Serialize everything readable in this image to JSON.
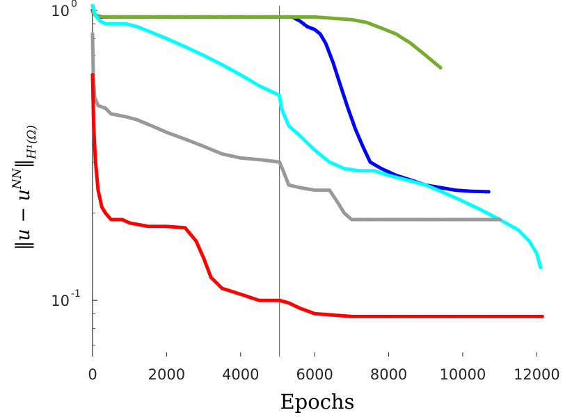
{
  "chart_data": {
    "type": "scatter",
    "xlabel": "Epochs",
    "ylabel": "‖u − u^NN‖_{H¹(Ω)}",
    "xlim": [
      0,
      12200
    ],
    "ylim": [
      0.064,
      1.04
    ],
    "yscale": "log",
    "grid": false,
    "xticks": [
      0,
      2000,
      4000,
      6000,
      8000,
      10000,
      12000
    ],
    "yticks": [
      {
        "value": 1.0,
        "base": "10",
        "exp": "0"
      },
      {
        "value": 0.1,
        "base": "10",
        "exp": "-1"
      }
    ],
    "vline": {
      "x": 5050
    },
    "series": [
      {
        "color": "#0000ff",
        "points": [
          [
            0,
            1.0
          ],
          [
            60,
            0.97
          ],
          [
            150,
            0.95
          ],
          [
            400,
            0.95
          ],
          [
            1000,
            0.95
          ],
          [
            2000,
            0.95
          ],
          [
            3000,
            0.95
          ],
          [
            4000,
            0.95
          ],
          [
            5000,
            0.95
          ],
          [
            5400,
            0.95
          ],
          [
            5600,
            0.92
          ],
          [
            5800,
            0.88
          ],
          [
            6000,
            0.86
          ],
          [
            6150,
            0.83
          ],
          [
            6300,
            0.77
          ],
          [
            6500,
            0.66
          ],
          [
            6700,
            0.55
          ],
          [
            6900,
            0.46
          ],
          [
            7100,
            0.39
          ],
          [
            7300,
            0.34
          ],
          [
            7500,
            0.3
          ],
          [
            7800,
            0.285
          ],
          [
            8200,
            0.27
          ],
          [
            8600,
            0.26
          ],
          [
            9000,
            0.25
          ],
          [
            9400,
            0.245
          ],
          [
            9800,
            0.24
          ],
          [
            10200,
            0.238
          ],
          [
            10700,
            0.237
          ]
        ]
      },
      {
        "color": "#77ac30",
        "points": [
          [
            0,
            0.99
          ],
          [
            100,
            0.96
          ],
          [
            300,
            0.95
          ],
          [
            1000,
            0.95
          ],
          [
            2000,
            0.95
          ],
          [
            3000,
            0.95
          ],
          [
            4000,
            0.95
          ],
          [
            5000,
            0.95
          ],
          [
            6000,
            0.95
          ],
          [
            6500,
            0.94
          ],
          [
            7000,
            0.93
          ],
          [
            7400,
            0.91
          ],
          [
            7800,
            0.87
          ],
          [
            8200,
            0.83
          ],
          [
            8600,
            0.77
          ],
          [
            9000,
            0.7
          ],
          [
            9400,
            0.635
          ]
        ]
      },
      {
        "color": "#00ffff",
        "points": [
          [
            0,
            1.04
          ],
          [
            80,
            0.96
          ],
          [
            200,
            0.92
          ],
          [
            350,
            0.9
          ],
          [
            900,
            0.9
          ],
          [
            1200,
            0.88
          ],
          [
            1600,
            0.84
          ],
          [
            2000,
            0.8
          ],
          [
            2500,
            0.75
          ],
          [
            3000,
            0.7
          ],
          [
            3500,
            0.65
          ],
          [
            4000,
            0.6
          ],
          [
            4500,
            0.55
          ],
          [
            5050,
            0.51
          ],
          [
            5100,
            0.46
          ],
          [
            5300,
            0.4
          ],
          [
            5600,
            0.37
          ],
          [
            6000,
            0.33
          ],
          [
            6400,
            0.3
          ],
          [
            6800,
            0.285
          ],
          [
            7200,
            0.28
          ],
          [
            7600,
            0.28
          ],
          [
            8000,
            0.27
          ],
          [
            8500,
            0.26
          ],
          [
            9000,
            0.25
          ],
          [
            9500,
            0.235
          ],
          [
            10000,
            0.22
          ],
          [
            10500,
            0.205
          ],
          [
            11000,
            0.19
          ],
          [
            11500,
            0.175
          ],
          [
            11800,
            0.16
          ],
          [
            12000,
            0.145
          ],
          [
            12100,
            0.13
          ]
        ]
      },
      {
        "color": "#999999",
        "points": [
          [
            0,
            0.83
          ],
          [
            20,
            0.6
          ],
          [
            60,
            0.5
          ],
          [
            150,
            0.47
          ],
          [
            350,
            0.46
          ],
          [
            500,
            0.44
          ],
          [
            900,
            0.43
          ],
          [
            1200,
            0.42
          ],
          [
            1600,
            0.4
          ],
          [
            2000,
            0.38
          ],
          [
            2500,
            0.36
          ],
          [
            3000,
            0.34
          ],
          [
            3500,
            0.32
          ],
          [
            4000,
            0.31
          ],
          [
            4600,
            0.305
          ],
          [
            5050,
            0.3
          ],
          [
            5150,
            0.28
          ],
          [
            5300,
            0.25
          ],
          [
            5600,
            0.245
          ],
          [
            6000,
            0.24
          ],
          [
            6400,
            0.24
          ],
          [
            6600,
            0.22
          ],
          [
            6800,
            0.2
          ],
          [
            7000,
            0.19
          ],
          [
            8000,
            0.19
          ],
          [
            9000,
            0.19
          ],
          [
            10000,
            0.19
          ],
          [
            11000,
            0.19
          ]
        ]
      },
      {
        "color": "#ff0000",
        "points": [
          [
            0,
            0.6
          ],
          [
            30,
            0.4
          ],
          [
            80,
            0.3
          ],
          [
            150,
            0.24
          ],
          [
            250,
            0.21
          ],
          [
            350,
            0.2
          ],
          [
            500,
            0.19
          ],
          [
            800,
            0.19
          ],
          [
            1000,
            0.185
          ],
          [
            1500,
            0.18
          ],
          [
            2000,
            0.18
          ],
          [
            2500,
            0.178
          ],
          [
            2800,
            0.16
          ],
          [
            3000,
            0.14
          ],
          [
            3200,
            0.12
          ],
          [
            3500,
            0.11
          ],
          [
            4000,
            0.105
          ],
          [
            4500,
            0.1
          ],
          [
            5050,
            0.1
          ],
          [
            5300,
            0.098
          ],
          [
            5600,
            0.094
          ],
          [
            6000,
            0.09
          ],
          [
            6500,
            0.089
          ],
          [
            7000,
            0.088
          ],
          [
            8000,
            0.088
          ],
          [
            9000,
            0.088
          ],
          [
            10000,
            0.088
          ],
          [
            11000,
            0.088
          ],
          [
            12000,
            0.088
          ],
          [
            12150,
            0.088
          ]
        ]
      }
    ]
  }
}
